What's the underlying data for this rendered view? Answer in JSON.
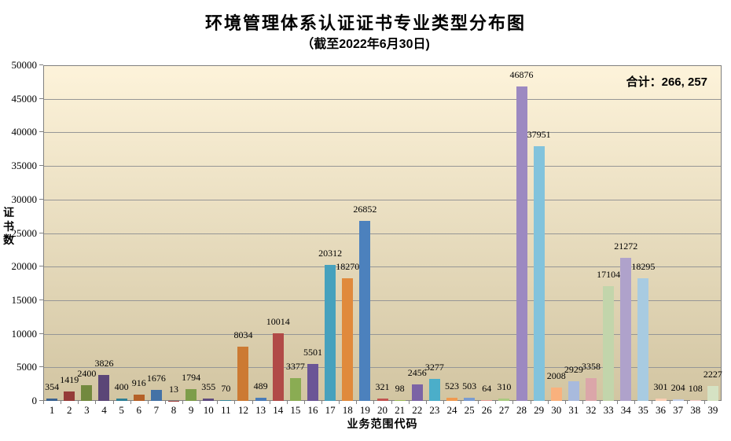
{
  "header": {
    "title": "环境管理体系认证证书专业类型分布图",
    "subtitle": "（截至2022年6月30日)"
  },
  "chart_data": {
    "type": "bar",
    "title": "环境管理体系认证证书专业类型分布图",
    "subtitle": "（截至2022年6月30日)",
    "xlabel": "业务范围代码",
    "ylabel": "证书数",
    "total_label": "合计：266, 257",
    "ylim": [
      0,
      50000
    ],
    "ytick_step": 5000,
    "yticks": [
      0,
      5000,
      10000,
      15000,
      20000,
      25000,
      30000,
      35000,
      40000,
      45000,
      50000
    ],
    "grid": true,
    "legend": "none",
    "categories": [
      "1",
      "2",
      "3",
      "4",
      "5",
      "6",
      "7",
      "8",
      "9",
      "10",
      "11",
      "12",
      "13",
      "14",
      "15",
      "16",
      "17",
      "18",
      "19",
      "20",
      "21",
      "22",
      "23",
      "24",
      "25",
      "26",
      "27",
      "28",
      "29",
      "30",
      "31",
      "32",
      "33",
      "34",
      "35",
      "36",
      "37",
      "38",
      "39"
    ],
    "values": [
      354,
      1419,
      2400,
      3826,
      400,
      916,
      1676,
      13,
      1794,
      355,
      70,
      8034,
      489,
      10014,
      3377,
      5501,
      20312,
      18270,
      26852,
      321,
      98,
      2456,
      3277,
      523,
      503,
      64,
      310,
      46876,
      37951,
      2008,
      2929,
      3358,
      17104,
      21272,
      18295,
      301,
      204,
      108,
      2227
    ],
    "bar_colors": [
      "#3A628F",
      "#953B38",
      "#72893E",
      "#5B4677",
      "#2E7F95",
      "#B56127",
      "#4472A6",
      "#A34441",
      "#7D9D4A",
      "#5E4A7D",
      "#35889F",
      "#CC7A33",
      "#4A7CB8",
      "#B14A47",
      "#8AAC53",
      "#6B5596",
      "#46A1BD",
      "#E08A3C",
      "#4C81BD",
      "#C25450",
      "#9BBB59",
      "#7B63A5",
      "#4BAEC9",
      "#F09A50",
      "#7A9CD1",
      "#E79A93",
      "#A9CA80",
      "#9C89C1",
      "#82C3DC",
      "#F9B17D",
      "#A8BADD",
      "#DBA6A9",
      "#C2D5AB",
      "#AFA2CB",
      "#A8CBE1",
      "#FBCFB4",
      "#C2CFE9",
      "#F0C8C6",
      "#D5E2C3"
    ],
    "plot_bg_top": "#FDF3DA",
    "plot_bg_bottom": "#D2C5A2",
    "gridline_color": "#969696",
    "axis_color": "#808080"
  }
}
